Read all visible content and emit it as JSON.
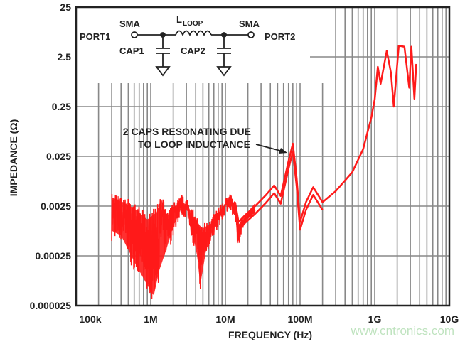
{
  "chart_data": {
    "type": "line",
    "xlabel": "FREQUENCY (Hz)",
    "ylabel": "IMPEDANCE (Ω)",
    "xscale": "log",
    "yscale": "log",
    "xlim": [
      100000,
      10000000000
    ],
    "ylim": [
      2.5e-05,
      25
    ],
    "grid": true,
    "line_color": "#ff1a1a",
    "x_tick_labels": [
      "100k",
      "1M",
      "10M",
      "100M",
      "1G",
      "10G"
    ],
    "x_ticks": [
      100000,
      1000000,
      10000000,
      100000000,
      1000000000,
      10000000000
    ],
    "y_tick_labels": [
      "25",
      "2.5",
      "0.25",
      "0.025",
      "0.0025",
      "0.00025",
      "0.000025"
    ],
    "y_ticks": [
      25,
      2.5,
      0.25,
      0.025,
      0.0025,
      0.00025,
      2.5e-05
    ],
    "series": [
      {
        "envelope": "upper",
        "x": [
          300000,
          400000,
          600000,
          900000,
          1200000,
          1400000,
          1600000,
          2000000,
          2600000,
          3200000,
          4200000,
          5000000,
          6500000,
          9000000,
          11500000,
          13500000,
          15000000,
          18000000,
          25000000,
          35000000,
          45000000,
          55000000,
          70000000,
          80000000,
          90000000,
          100000000,
          120000000,
          150000000,
          200000000,
          300000000,
          500000000,
          700000000,
          900000000,
          1000000000,
          1100000000,
          1200000000,
          1450000000,
          1650000000,
          1800000000,
          2100000000,
          2500000000,
          2900000000,
          3100000000,
          3400000000,
          3600000000
        ],
        "y": [
          0.005,
          0.0042,
          0.003,
          0.0018,
          0.0025,
          0.0045,
          0.002,
          0.003,
          0.0042,
          0.0032,
          0.0015,
          0.0012,
          0.0015,
          0.003,
          0.0045,
          0.003,
          0.0012,
          0.0016,
          0.0025,
          0.0042,
          0.0065,
          0.004,
          0.02,
          0.045,
          0.009,
          0.0012,
          0.003,
          0.006,
          0.003,
          0.005,
          0.012,
          0.035,
          0.15,
          0.35,
          1.58,
          0.72,
          3.3,
          1.2,
          0.25,
          4.2,
          4.0,
          0.6,
          4.0,
          0.36,
          1.8
        ]
      },
      {
        "envelope": "lower",
        "x": [
          300000,
          400000,
          600000,
          900000,
          1100000,
          1300000,
          1600000,
          2000000,
          2600000,
          3200000,
          4200000,
          4600000,
          5500000,
          7000000,
          9000000,
          11500000,
          13500000,
          14500000,
          17000000,
          25000000
        ],
        "y": [
          0.0005,
          0.0004,
          0.00012,
          4e-05,
          2.5e-05,
          8e-05,
          0.0002,
          0.0006,
          0.0015,
          0.0012,
          0.00015,
          4e-05,
          0.0002,
          0.0006,
          0.0012,
          0.0022,
          0.0012,
          0.0003,
          0.0009,
          0.0018
        ]
      }
    ],
    "annotations": [
      {
        "lines": [
          "2 CAPS RESONATING DUE",
          "TO LOOP INDUCTANCE"
        ],
        "points_to_x": 80000000,
        "points_to_y": 0.03
      }
    ],
    "schematic": {
      "sma_left": "SMA",
      "sma_right": "SMA",
      "port1": "PORT1",
      "port2": "PORT2",
      "inductor": "L",
      "inductor_sub": "LOOP",
      "cap1": "CAP1",
      "cap2": "CAP2"
    }
  },
  "watermark": "www.cntronics.com"
}
